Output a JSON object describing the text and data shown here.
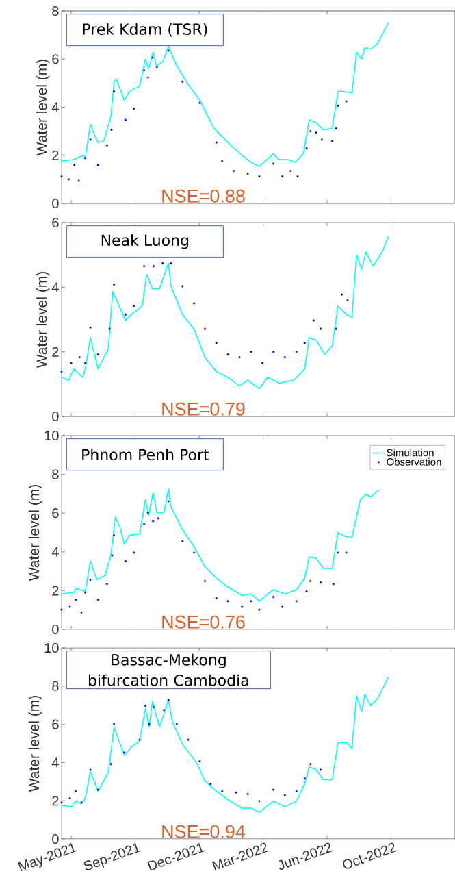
{
  "chart_data": [
    {
      "type": "line",
      "ylabel": "Water level (m)",
      "annotations": [
        "Prek Kdam (TSR)",
        "NSE=0.88"
      ],
      "xlim": [
        "2021-05-10",
        "2023-01-15"
      ],
      "ylim": [
        0,
        8
      ],
      "yticks": [
        0,
        2,
        4,
        6,
        8
      ],
      "xticks": [
        {
          "value": "2021-05-25",
          "label": null
        },
        {
          "value": "2021-09-02",
          "label": null
        },
        {
          "value": "2021-12-11",
          "label": null
        },
        {
          "value": "2022-03-21",
          "label": null
        },
        {
          "value": "2022-06-29",
          "label": null
        },
        {
          "value": "2022-10-07",
          "label": null
        }
      ],
      "tick_labels": "y",
      "series": [
        {
          "color": "#00ffff",
          "x": [
            "2021-05-10",
            "2021-05-29",
            "2021-06-12",
            "2021-06-16",
            "2021-06-24",
            "2021-06-30",
            "2021-07-06",
            "2021-07-15",
            "2021-07-26",
            "2021-07-31",
            "2021-08-04",
            "2021-08-16",
            "2021-08-24",
            "2021-09-09",
            "2021-09-18",
            "2021-09-23",
            "2021-09-30",
            "2021-10-05",
            "2021-10-15",
            "2021-10-24",
            "2021-11-06",
            "2021-11-24",
            "2021-12-12",
            "2022-01-03",
            "2022-01-25",
            "2022-02-16",
            "2022-03-02",
            "2022-03-15",
            "2022-03-24",
            "2022-04-06",
            "2022-04-15",
            "2022-04-29",
            "2022-05-10",
            "2022-05-23",
            "2022-06-01",
            "2022-06-12",
            "2022-06-23",
            "2022-07-07",
            "2022-07-16",
            "2022-07-24",
            "2022-08-07",
            "2022-08-14",
            "2022-08-22",
            "2022-08-27",
            "2022-09-05",
            "2022-09-16",
            "2022-10-03"
          ],
          "values": [
            1.76,
            1.82,
            2.0,
            1.88,
            3.29,
            2.88,
            2.53,
            2.59,
            3.59,
            5.06,
            5.14,
            4.29,
            4.65,
            4.88,
            6.0,
            5.59,
            6.29,
            5.71,
            5.88,
            6.53,
            5.71,
            4.94,
            4.29,
            3.12,
            2.53,
            2.0,
            1.71,
            1.53,
            1.76,
            2.06,
            1.82,
            1.82,
            1.71,
            2.06,
            3.47,
            3.35,
            3.06,
            3.12,
            4.65,
            4.65,
            4.59,
            6.29,
            6.0,
            6.47,
            6.41,
            6.65,
            7.53
          ]
        },
        {
          "type": "scatter",
          "color": "#0000ff",
          "x": [
            "2021-05-10",
            "2021-05-21",
            "2021-05-30",
            "2021-06-06",
            "2021-06-16",
            "2021-06-24",
            "2021-07-06",
            "2021-07-20",
            "2021-07-27",
            "2021-07-31",
            "2021-08-18",
            "2021-08-31",
            "2021-09-16",
            "2021-09-22",
            "2021-09-29",
            "2021-10-06",
            "2021-10-24",
            "2021-11-15",
            "2021-12-12",
            "2022-01-07",
            "2022-01-16",
            "2022-02-03",
            "2022-02-25",
            "2022-03-15",
            "2022-04-06",
            "2022-04-20",
            "2022-05-03",
            "2022-05-14",
            "2022-05-28",
            "2022-06-03",
            "2022-06-12",
            "2022-06-21",
            "2022-07-07",
            "2022-07-13",
            "2022-07-16",
            "2022-07-29"
          ],
          "values": [
            1.12,
            1.0,
            1.59,
            0.94,
            1.88,
            2.65,
            1.59,
            2.41,
            3.06,
            4.65,
            3.47,
            3.94,
            5.53,
            5.24,
            6.06,
            5.65,
            6.35,
            5.06,
            4.18,
            2.53,
            1.76,
            1.35,
            1.24,
            1.12,
            1.65,
            1.12,
            1.35,
            1.12,
            2.29,
            3.0,
            2.94,
            2.65,
            2.59,
            3.12,
            4.06,
            4.24
          ]
        }
      ]
    },
    {
      "type": "line",
      "ylabel": "Water level (m)",
      "annotations": [
        "Neak Luong",
        "NSE=0.79"
      ],
      "xlim": [
        "2021-05-10",
        "2023-01-15"
      ],
      "ylim": [
        0,
        6
      ],
      "yticks": [
        0,
        2,
        4,
        6
      ],
      "xticks": [
        {
          "value": "2021-05-25",
          "label": null
        },
        {
          "value": "2021-09-02",
          "label": null
        },
        {
          "value": "2021-12-11",
          "label": null
        },
        {
          "value": "2022-03-21",
          "label": null
        },
        {
          "value": "2022-06-29",
          "label": null
        },
        {
          "value": "2022-10-07",
          "label": null
        }
      ],
      "tick_labels": "y",
      "series": [
        {
          "color": "#00ffff",
          "x": [
            "2021-05-10",
            "2021-05-21",
            "2021-05-29",
            "2021-06-12",
            "2021-06-16",
            "2021-06-24",
            "2021-07-06",
            "2021-07-22",
            "2021-07-29",
            "2021-08-18",
            "2021-08-27",
            "2021-09-13",
            "2021-09-20",
            "2021-09-29",
            "2021-10-10",
            "2021-10-24",
            "2021-10-28",
            "2021-11-15",
            "2021-12-03",
            "2021-12-20",
            "2022-01-07",
            "2022-01-25",
            "2022-02-12",
            "2022-02-25",
            "2022-03-15",
            "2022-03-28",
            "2022-04-15",
            "2022-05-08",
            "2022-05-25",
            "2022-06-01",
            "2022-06-12",
            "2022-06-25",
            "2022-07-07",
            "2022-07-16",
            "2022-07-29",
            "2022-08-07",
            "2022-08-14",
            "2022-08-22",
            "2022-08-29",
            "2022-09-09",
            "2022-09-23",
            "2022-10-03"
          ],
          "values": [
            1.21,
            1.12,
            1.47,
            1.21,
            1.47,
            2.44,
            1.47,
            2.09,
            3.86,
            2.97,
            3.15,
            3.42,
            4.39,
            3.95,
            3.95,
            4.74,
            4.03,
            3.15,
            2.71,
            1.83,
            1.39,
            1.21,
            0.94,
            1.12,
            0.86,
            1.21,
            1.03,
            1.12,
            1.47,
            2.44,
            2.36,
            1.92,
            2.18,
            3.42,
            3.15,
            3.06,
            5.0,
            4.56,
            5.09,
            4.65,
            5.09,
            5.58
          ]
        },
        {
          "type": "scatter",
          "color": "#0000ff",
          "x": [
            "2021-05-10",
            "2021-05-25",
            "2021-06-07",
            "2021-06-16",
            "2021-06-24",
            "2021-07-06",
            "2021-07-24",
            "2021-07-31",
            "2021-08-18",
            "2021-08-31",
            "2021-09-16",
            "2021-10-01",
            "2021-10-15",
            "2021-10-28",
            "2021-11-15",
            "2021-12-03",
            "2021-12-20",
            "2022-01-07",
            "2022-01-25",
            "2022-02-12",
            "2022-03-02",
            "2022-03-20",
            "2022-04-06",
            "2022-04-24",
            "2022-05-12",
            "2022-05-25",
            "2022-06-08",
            "2022-06-19",
            "2022-07-13",
            "2022-07-22",
            "2022-07-31"
          ],
          "values": [
            1.39,
            1.65,
            1.83,
            1.65,
            2.75,
            1.92,
            2.71,
            4.08,
            3.15,
            3.42,
            4.65,
            4.65,
            4.74,
            4.74,
            4.03,
            3.5,
            2.71,
            2.27,
            1.92,
            1.83,
            2.0,
            1.65,
            2.0,
            1.83,
            2.0,
            2.27,
            2.97,
            2.71,
            2.71,
            3.77,
            3.59
          ]
        }
      ]
    },
    {
      "type": "line",
      "ylabel": "Water level (m)",
      "annotations": [
        "Phnom Penh Port",
        "NSE=0.76"
      ],
      "xlim": [
        "2021-05-10",
        "2023-01-15"
      ],
      "ylim": [
        0,
        10
      ],
      "yticks": [
        0,
        2,
        4,
        6,
        8,
        10
      ],
      "xticks": [
        {
          "value": "2021-05-25",
          "label": null
        },
        {
          "value": "2021-09-02",
          "label": null
        },
        {
          "value": "2021-12-11",
          "label": null
        },
        {
          "value": "2022-03-21",
          "label": null
        },
        {
          "value": "2022-06-29",
          "label": null
        },
        {
          "value": "2022-10-07",
          "label": null
        }
      ],
      "tick_labels": "y",
      "legend": "top right",
      "series": [
        {
          "name": "Simulation",
          "color": "#00ffff",
          "x": [
            "2021-05-10",
            "2021-05-29",
            "2021-06-01",
            "2021-06-16",
            "2021-06-24",
            "2021-07-04",
            "2021-07-17",
            "2021-07-26",
            "2021-08-02",
            "2021-08-09",
            "2021-08-16",
            "2021-08-24",
            "2021-09-09",
            "2021-09-18",
            "2021-09-23",
            "2021-09-30",
            "2021-10-06",
            "2021-10-17",
            "2021-10-24",
            "2021-10-28",
            "2021-11-15",
            "2021-12-03",
            "2021-12-20",
            "2022-01-07",
            "2022-01-25",
            "2022-02-16",
            "2022-03-02",
            "2022-03-15",
            "2022-04-06",
            "2022-04-24",
            "2022-05-12",
            "2022-05-25",
            "2022-06-01",
            "2022-06-12",
            "2022-06-23",
            "2022-07-07",
            "2022-07-16",
            "2022-07-29",
            "2022-08-07",
            "2022-08-20",
            "2022-08-29",
            "2022-09-05",
            "2022-09-18"
          ],
          "values": [
            1.83,
            1.9,
            2.12,
            1.97,
            3.52,
            2.56,
            2.78,
            3.81,
            5.8,
            5.29,
            4.4,
            4.85,
            4.92,
            6.69,
            5.88,
            7.05,
            6.02,
            6.02,
            7.25,
            6.32,
            5.14,
            4.26,
            3.23,
            2.64,
            2.19,
            1.75,
            1.83,
            1.46,
            2.05,
            1.83,
            2.05,
            2.64,
            3.74,
            3.67,
            3.15,
            3.15,
            4.99,
            4.77,
            4.77,
            6.69,
            6.98,
            6.83,
            7.2
          ]
        },
        {
          "type": "scatter",
          "name": "Observation",
          "color": "#0000ff",
          "x": [
            "2021-05-10",
            "2021-05-23",
            "2021-06-01",
            "2021-06-10",
            "2021-06-16",
            "2021-06-24",
            "2021-07-06",
            "2021-07-20",
            "2021-07-28",
            "2021-07-31",
            "2021-08-18",
            "2021-08-31",
            "2021-09-16",
            "2021-09-22",
            "2021-09-30",
            "2021-10-08",
            "2021-10-24",
            "2021-11-15",
            "2021-12-03",
            "2021-12-20",
            "2022-01-07",
            "2022-01-25",
            "2022-02-16",
            "2022-03-02",
            "2022-03-15",
            "2022-04-06",
            "2022-04-20",
            "2022-05-12",
            "2022-05-28",
            "2022-06-03",
            "2022-06-19",
            "2022-07-09",
            "2022-07-16",
            "2022-07-29"
          ],
          "values": [
            1.02,
            1.16,
            1.53,
            0.87,
            1.9,
            2.56,
            1.53,
            2.34,
            3.81,
            4.85,
            3.52,
            3.96,
            5.43,
            6.02,
            5.58,
            5.73,
            6.61,
            4.55,
            3.96,
            2.49,
            1.61,
            1.46,
            1.16,
            1.46,
            1.02,
            1.68,
            1.16,
            1.46,
            1.97,
            2.49,
            2.42,
            2.34,
            3.96,
            3.96
          ]
        }
      ]
    },
    {
      "type": "line",
      "ylabel": "Water level (m)",
      "annotations": [
        "Bassac-Mekong bifurcation Cambodia",
        "NSE=0.94"
      ],
      "xlim": [
        "2021-05-10",
        "2023-01-15"
      ],
      "ylim": [
        0,
        10
      ],
      "yticks": [
        0,
        2,
        4,
        6,
        8,
        10
      ],
      "xticks": [
        {
          "value": "2021-05-25",
          "label": "May-2021"
        },
        {
          "value": "2021-09-02",
          "label": "Sep-2021"
        },
        {
          "value": "2021-12-11",
          "label": "Dec-2021"
        },
        {
          "value": "2022-03-21",
          "label": "Mar-2022"
        },
        {
          "value": "2022-06-29",
          "label": "Jun-2022"
        },
        {
          "value": "2022-10-07",
          "label": "Oct-2022"
        }
      ],
      "series": [
        {
          "color": "#00ffff",
          "x": [
            "2021-05-10",
            "2021-05-25",
            "2021-06-01",
            "2021-06-10",
            "2021-06-16",
            "2021-06-24",
            "2021-07-06",
            "2021-07-22",
            "2021-07-31",
            "2021-08-16",
            "2021-08-27",
            "2021-09-09",
            "2021-09-18",
            "2021-09-24",
            "2021-09-29",
            "2021-10-10",
            "2021-10-24",
            "2021-10-30",
            "2021-11-15",
            "2021-12-07",
            "2021-12-20",
            "2022-01-07",
            "2022-01-25",
            "2022-02-16",
            "2022-03-02",
            "2022-03-15",
            "2022-04-06",
            "2022-04-24",
            "2022-05-12",
            "2022-05-25",
            "2022-06-01",
            "2022-06-12",
            "2022-06-23",
            "2022-07-07",
            "2022-07-16",
            "2022-07-29",
            "2022-08-07",
            "2022-08-14",
            "2022-08-22",
            "2022-08-27",
            "2022-09-05",
            "2022-09-16",
            "2022-10-03"
          ],
          "values": [
            1.76,
            1.68,
            1.98,
            1.83,
            2.13,
            3.55,
            2.5,
            3.47,
            5.86,
            4.37,
            4.81,
            5.11,
            6.83,
            5.86,
            7.2,
            5.86,
            7.27,
            6.15,
            4.96,
            3.99,
            3.03,
            2.5,
            2.06,
            1.61,
            1.61,
            1.39,
            1.98,
            1.68,
            1.98,
            2.88,
            3.77,
            3.62,
            3.1,
            3.1,
            5.04,
            5.04,
            4.74,
            7.5,
            6.68,
            7.57,
            6.97,
            7.35,
            8.47
          ]
        },
        {
          "type": "scatter",
          "color": "#0000ff",
          "x": [
            "2021-05-10",
            "2021-05-23",
            "2021-06-01",
            "2021-06-10",
            "2021-06-24",
            "2021-07-06",
            "2021-07-26",
            "2021-07-31",
            "2021-08-16",
            "2021-09-09",
            "2021-09-18",
            "2021-09-24",
            "2021-10-01",
            "2021-10-17",
            "2021-10-24",
            "2021-11-06",
            "2021-11-24",
            "2021-12-12",
            "2021-12-29",
            "2022-01-16",
            "2022-02-07",
            "2022-02-25",
            "2022-03-15",
            "2022-04-06",
            "2022-04-24",
            "2022-05-12",
            "2022-05-25",
            "2022-06-03",
            "2022-06-19"
          ],
          "values": [
            1.91,
            2.13,
            2.5,
            1.91,
            3.62,
            2.58,
            3.92,
            6.01,
            4.52,
            5.19,
            6.97,
            6.01,
            6.9,
            6.75,
            7.27,
            6.01,
            5.19,
            4.07,
            2.88,
            2.5,
            2.43,
            2.35,
            1.98,
            2.58,
            2.28,
            2.5,
            3.17,
            3.92,
            3.62
          ]
        }
      ]
    }
  ]
}
